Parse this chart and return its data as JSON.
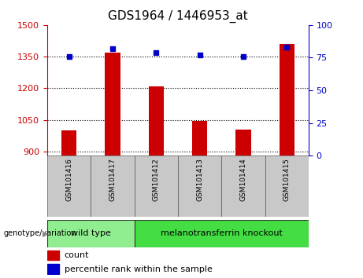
{
  "title": "GDS1964 / 1446953_at",
  "samples": [
    "GSM101416",
    "GSM101417",
    "GSM101412",
    "GSM101413",
    "GSM101414",
    "GSM101415"
  ],
  "bar_values": [
    1000,
    1370,
    1210,
    1045,
    1005,
    1410
  ],
  "percentile_values": [
    76,
    82,
    79,
    77,
    76,
    83
  ],
  "ylim_left": [
    880,
    1500
  ],
  "ylim_right": [
    0,
    100
  ],
  "yticks_left": [
    900,
    1050,
    1200,
    1350,
    1500
  ],
  "yticks_right": [
    0,
    25,
    50,
    75,
    100
  ],
  "bar_color": "#cc0000",
  "dot_color": "#0000cc",
  "groups": [
    {
      "label": "wild type",
      "indices": [
        0,
        1
      ],
      "color": "#90ee90"
    },
    {
      "label": "melanotransferrin knockout",
      "indices": [
        2,
        3,
        4,
        5
      ],
      "color": "#44dd44"
    }
  ],
  "group_label": "genotype/variation",
  "legend_count_label": "count",
  "legend_percentile_label": "percentile rank within the sample",
  "sample_box_color": "#c8c8c8",
  "bar_width": 0.35,
  "title_fontsize": 11,
  "tick_fontsize": 8,
  "sample_fontsize": 6.5,
  "group_fontsize": 8,
  "legend_fontsize": 8
}
